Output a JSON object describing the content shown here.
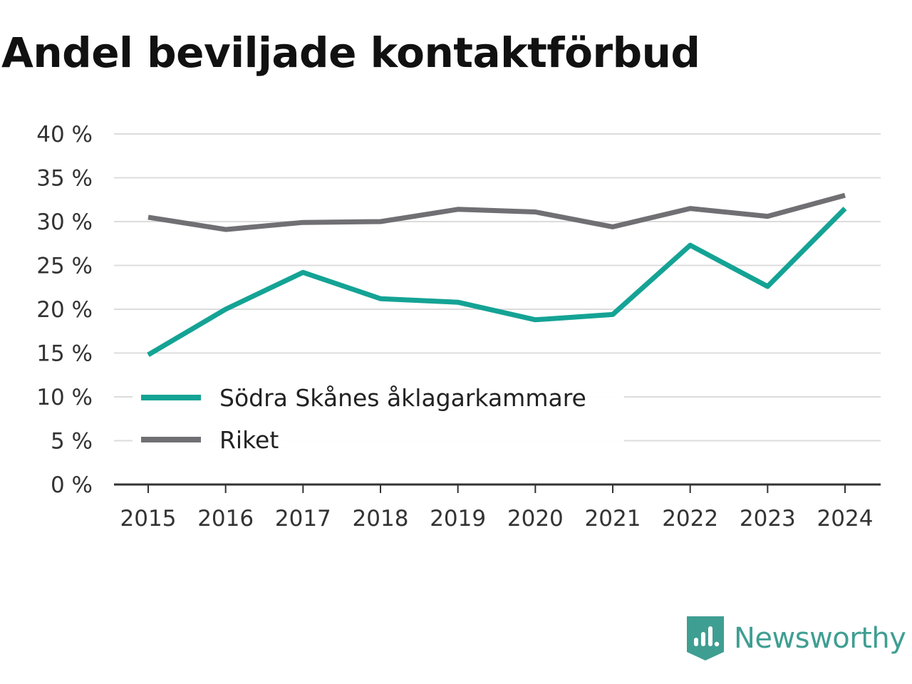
{
  "chart_data": {
    "type": "line",
    "title": "Andel beviljade kontaktförbud",
    "x": [
      "2015",
      "2016",
      "2017",
      "2018",
      "2019",
      "2020",
      "2021",
      "2022",
      "2023",
      "2024"
    ],
    "series": [
      {
        "name": "Södra Skånes åklagarkammare",
        "color": "#14a395",
        "values": [
          14.8,
          20.0,
          24.2,
          21.2,
          20.8,
          18.8,
          19.4,
          27.3,
          22.6,
          31.5
        ]
      },
      {
        "name": "Riket",
        "color": "#707074",
        "values": [
          30.5,
          29.1,
          29.9,
          30.0,
          31.4,
          31.1,
          29.4,
          31.5,
          30.6,
          33.0
        ]
      }
    ],
    "y_ticks": [
      "0 %",
      "5 %",
      "10 %",
      "15 %",
      "20 %",
      "25 %",
      "30 %",
      "35 %",
      "40 %"
    ],
    "ylim": [
      0,
      40
    ],
    "ytick_step": 5,
    "grid": true,
    "legend_position": "lower-left"
  },
  "brand": {
    "name": "Newsworthy",
    "logo_icon": "bar-chart-bookmark-icon",
    "color": "#3f9e92"
  }
}
